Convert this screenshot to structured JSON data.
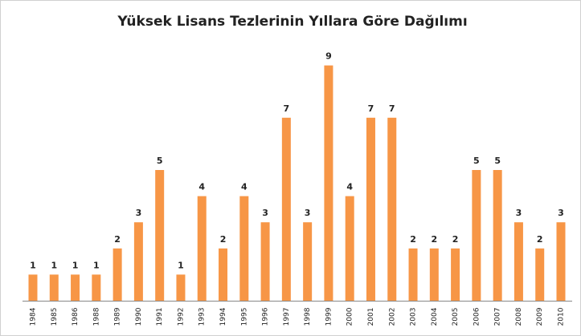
{
  "chart_data": {
    "type": "bar",
    "title": "Yüksek Lisans Tezlerinin Yıllara Göre Dağılımı",
    "categories": [
      "1984",
      "1985",
      "1986",
      "1988",
      "1989",
      "1990",
      "1991",
      "1992",
      "1993",
      "1994",
      "1995",
      "1996",
      "1997",
      "1998",
      "1999",
      "2000",
      "2001",
      "2002",
      "2003",
      "2004",
      "2005",
      "2006",
      "2007",
      "2008",
      "2009",
      "2010"
    ],
    "values": [
      1,
      1,
      1,
      1,
      2,
      3,
      5,
      1,
      4,
      2,
      4,
      3,
      7,
      3,
      9,
      4,
      7,
      7,
      2,
      2,
      2,
      5,
      5,
      3,
      2,
      3
    ],
    "color": "#f79646"
  }
}
